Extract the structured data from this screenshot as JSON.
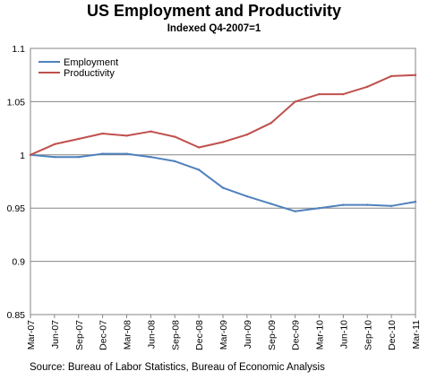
{
  "chart_data": {
    "type": "line",
    "title": "US Employment and Productivity",
    "subtitle": "Indexed Q4-2007=1",
    "source": "Source: Bureau of Labor Statistics, Bureau of Economic Analysis",
    "categories": [
      "Mar-07",
      "Jun-07",
      "Sep-07",
      "Dec-07",
      "Mar-08",
      "Jun-08",
      "Sep-08",
      "Dec-08",
      "Mar-09",
      "Jun-09",
      "Sep-09",
      "Dec-09",
      "Mar-10",
      "Jun-10",
      "Sep-10",
      "Dec-10",
      "Mar-11"
    ],
    "yticks": [
      "0.85",
      "0.9",
      "0.95",
      "1",
      "1.05",
      "1.1"
    ],
    "ylim": [
      0.85,
      1.1
    ],
    "grid": "horizontal",
    "legend": "top-left",
    "series": [
      {
        "name": "Employment",
        "color": "#4F81BD",
        "values": [
          1.0,
          0.998,
          0.998,
          1.001,
          1.001,
          0.998,
          0.994,
          0.986,
          0.969,
          0.961,
          0.954,
          0.947,
          0.95,
          0.953,
          0.953,
          0.952,
          0.956
        ]
      },
      {
        "name": "Productivity",
        "color": "#C0504D",
        "values": [
          1.0,
          1.01,
          1.015,
          1.02,
          1.018,
          1.022,
          1.017,
          1.007,
          1.012,
          1.019,
          1.03,
          1.05,
          1.057,
          1.057,
          1.064,
          1.074,
          1.075
        ]
      }
    ]
  }
}
